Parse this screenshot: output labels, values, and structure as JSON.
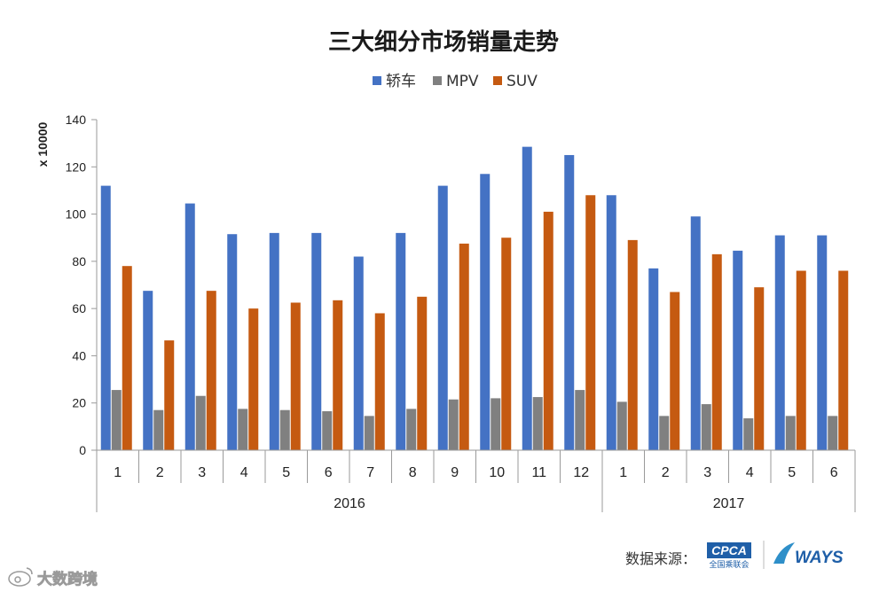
{
  "chart_data": {
    "type": "bar",
    "title": "三大细分市场销量走势",
    "ylabel": "x 10000",
    "ylim": [
      0,
      140
    ],
    "yticks": [
      0,
      20,
      40,
      60,
      80,
      100,
      120,
      140
    ],
    "grid": false,
    "legend_position": "top",
    "categories": [
      "1",
      "2",
      "3",
      "4",
      "5",
      "6",
      "7",
      "8",
      "9",
      "10",
      "11",
      "12",
      "1",
      "2",
      "3",
      "4",
      "5",
      "6"
    ],
    "groups": [
      {
        "label": "2016",
        "count": 12
      },
      {
        "label": "2017",
        "count": 6
      }
    ],
    "series": [
      {
        "name": "轿车",
        "color": "#4472C4",
        "values": [
          112,
          67.5,
          104.5,
          91.5,
          92,
          92,
          82,
          92,
          112,
          117,
          128.5,
          125,
          108,
          77,
          99,
          84.5,
          91,
          91
        ]
      },
      {
        "name": "MPV",
        "color": "#808080",
        "values": [
          25.5,
          17,
          23,
          17.5,
          17,
          16.5,
          14.5,
          17.5,
          21.5,
          22,
          22.5,
          25.5,
          20.5,
          14.5,
          19.5,
          13.5,
          14.5,
          14.5
        ]
      },
      {
        "name": "SUV",
        "color": "#C55A11",
        "values": [
          78,
          46.5,
          67.5,
          60,
          62.5,
          63.5,
          58,
          65,
          87.5,
          90,
          101,
          108,
          89,
          67,
          83,
          69,
          76,
          76
        ]
      }
    ]
  },
  "footer": {
    "source_label": "数据来源：",
    "logo_cpca_text": "CPCA",
    "logo_cpca_sub": "全国乘联会",
    "logo_ways_text": "WAYS",
    "watermark_text": "大数跨境"
  }
}
